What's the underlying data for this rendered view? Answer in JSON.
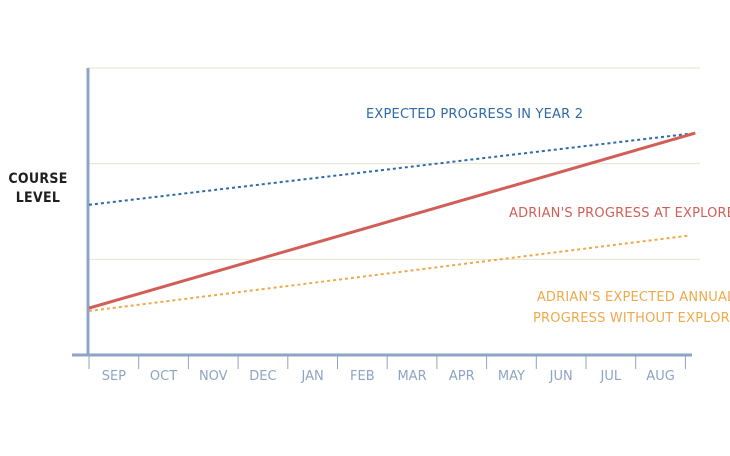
{
  "chart_data": {
    "type": "line",
    "title": "",
    "ylabel_lines": [
      "COURSE",
      "LEVEL"
    ],
    "xlabel": "",
    "categories": [
      "SEP",
      "OCT",
      "NOV",
      "DEC",
      "JAN",
      "FEB",
      "MAR",
      "APR",
      "MAY",
      "JUN",
      "JUL",
      "AUG"
    ],
    "x_range": [
      0,
      12
    ],
    "y_range": [
      0,
      3
    ],
    "y_grid": [
      1,
      2,
      3
    ],
    "grid": true,
    "legend": "none",
    "series": [
      {
        "key": "expected_year2",
        "label": "EXPECTED PROGRESS IN YEAR 2",
        "color": "#2e6aa8",
        "style": "dotted",
        "x": [
          0,
          12.2
        ],
        "y": [
          1.57,
          2.32
        ]
      },
      {
        "key": "adrian_explore",
        "label": "ADRIAN'S PROGRESS AT EXPLORE",
        "color": "#d15f58",
        "style": "solid",
        "x": [
          0,
          12.2
        ],
        "y": [
          0.49,
          2.32
        ]
      },
      {
        "key": "adrian_without",
        "label_lines": [
          "ADRIAN'S EXPECTED ANNUAL",
          "PROGRESS WITHOUT EXPLORE"
        ],
        "color": "#efa94a",
        "style": "dotted",
        "x": [
          0,
          12.1
        ],
        "y": [
          0.46,
          1.25
        ]
      }
    ]
  }
}
